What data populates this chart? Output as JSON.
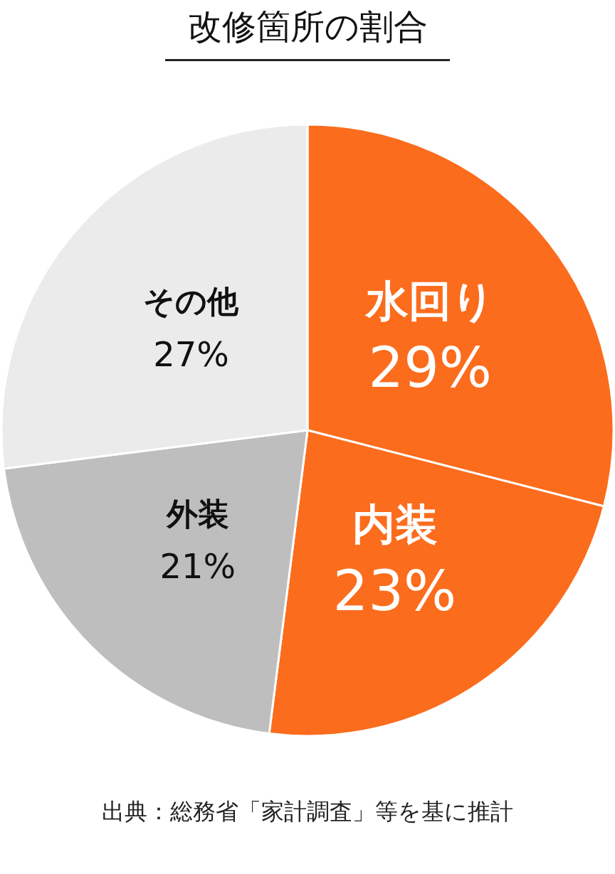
{
  "chart_data": {
    "type": "pie",
    "title": "改修箇所の割合",
    "categories": [
      "水回り",
      "内装",
      "外装",
      "その他"
    ],
    "values": [
      29,
      23,
      21,
      27
    ],
    "colors": [
      "#fb6c1d",
      "#fb6c1d",
      "#bebebe",
      "#ebebeb"
    ],
    "value_labels": [
      "29%",
      "23%",
      "21%",
      "27%"
    ],
    "annotations": [
      "出典：総務省「家計調査」等を基に推計"
    ]
  }
}
